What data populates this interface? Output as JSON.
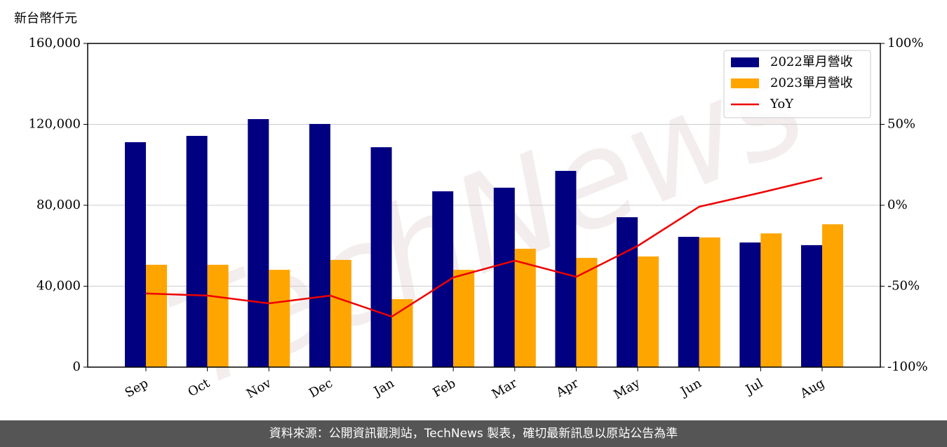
{
  "chart_data": {
    "type": "bar-line",
    "y_label": "新台幣仟元",
    "watermark": "TechNews",
    "categories": [
      "Sep",
      "Oct",
      "Nov",
      "Dec",
      "Jan",
      "Feb",
      "Mar",
      "Apr",
      "May",
      "Jun",
      "Jul",
      "Aug"
    ],
    "series": [
      {
        "name": "2022單月營收",
        "type": "bar",
        "color": "#000080",
        "values": [
          111200,
          114300,
          122600,
          120200,
          108700,
          86900,
          88700,
          97000,
          74100,
          64400,
          61600,
          60300
        ]
      },
      {
        "name": "2023單月營收",
        "type": "bar",
        "color": "#ffa500",
        "values": [
          50600,
          50600,
          48100,
          53000,
          33600,
          48100,
          58500,
          54000,
          54700,
          64100,
          66100,
          70600
        ]
      },
      {
        "name": "YoY",
        "type": "line",
        "axis": "y2",
        "color": "#ee0000",
        "values": [
          -54.5,
          -55.8,
          -60.6,
          -55.8,
          -68.8,
          -44.6,
          -34.2,
          -44.2,
          -25.1,
          -0.9,
          7.8,
          16.9
        ]
      }
    ],
    "ylim": [
      0,
      160000
    ],
    "yticks": [
      0,
      {
        "value": 40000,
        "label": "40,000"
      },
      {
        "value": 80000,
        "label": "80,000"
      },
      {
        "value": 120000,
        "label": "120,000"
      },
      {
        "value": 160000,
        "label": "160,000"
      }
    ],
    "y2lim": [
      -100,
      100
    ],
    "y2ticks": [
      {
        "value": -100,
        "label": "-100%"
      },
      {
        "value": -50,
        "label": "-50%"
      },
      {
        "value": 0,
        "label": "0%"
      },
      {
        "value": 50,
        "label": "50%"
      },
      {
        "value": 100,
        "label": "100%"
      }
    ],
    "grid": true,
    "legend": "upper right"
  },
  "footer": "資料來源：公開資訊觀測站，TechNews 製表，確切最新訊息以原站公告為準"
}
